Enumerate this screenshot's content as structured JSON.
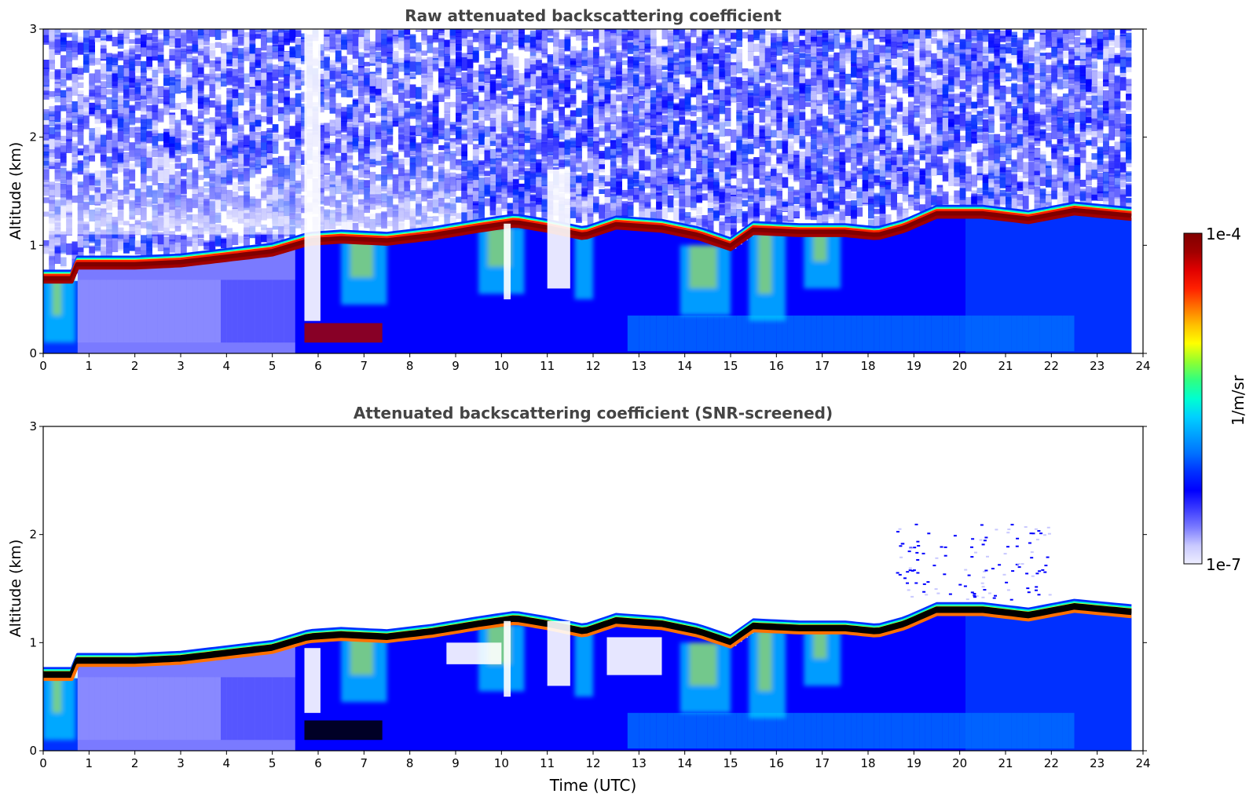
{
  "chart_data": [
    {
      "type": "heatmap",
      "title": "Raw attenuated backscattering coefficient",
      "xlabel": "",
      "ylabel": "Altitude (km)",
      "xlim": [
        0,
        24
      ],
      "ylim": [
        0,
        3
      ],
      "xticks": [
        "0",
        "1",
        "2",
        "3",
        "4",
        "5",
        "6",
        "7",
        "8",
        "9",
        "10",
        "11",
        "12",
        "13",
        "14",
        "15",
        "16",
        "17",
        "18",
        "19",
        "20",
        "21",
        "22",
        "23",
        "24"
      ],
      "yticks": [
        "0",
        "1",
        "2",
        "3"
      ],
      "data_end_hour": 23.75,
      "layer_top_km": [
        [
          0,
          0.75
        ],
        [
          0.65,
          0.75
        ],
        [
          0.7,
          0.88
        ],
        [
          2,
          0.88
        ],
        [
          3,
          0.9
        ],
        [
          4,
          0.95
        ],
        [
          5,
          1.0
        ],
        [
          5.8,
          1.1
        ],
        [
          6.5,
          1.12
        ],
        [
          7.5,
          1.1
        ],
        [
          8.5,
          1.15
        ],
        [
          9.5,
          1.22
        ],
        [
          10.3,
          1.27
        ],
        [
          11,
          1.22
        ],
        [
          11.8,
          1.15
        ],
        [
          12.5,
          1.25
        ],
        [
          13.5,
          1.22
        ],
        [
          14.3,
          1.15
        ],
        [
          15,
          1.05
        ],
        [
          15.5,
          1.2
        ],
        [
          16.5,
          1.18
        ],
        [
          17.5,
          1.18
        ],
        [
          18.2,
          1.15
        ],
        [
          18.8,
          1.22
        ],
        [
          19.5,
          1.35
        ],
        [
          20.5,
          1.35
        ],
        [
          21.5,
          1.3
        ],
        [
          22.5,
          1.38
        ],
        [
          23.75,
          1.33
        ]
      ],
      "colorbar": {
        "min": "1e-7",
        "max": "1e-4",
        "units": "1/m/sr"
      }
    },
    {
      "type": "heatmap",
      "title": "Attenuated backscattering coefficient (SNR-screened)",
      "xlabel": "Time (UTC)",
      "ylabel": "Altitude (km)",
      "xlim": [
        0,
        24
      ],
      "ylim": [
        0,
        3
      ],
      "xticks": [
        "0",
        "1",
        "2",
        "3",
        "4",
        "5",
        "6",
        "7",
        "8",
        "9",
        "10",
        "11",
        "12",
        "13",
        "14",
        "15",
        "16",
        "17",
        "18",
        "19",
        "20",
        "21",
        "22",
        "23",
        "24"
      ],
      "yticks": [
        "0",
        "1",
        "2",
        "3"
      ],
      "data_end_hour": 23.75,
      "colorbar": {
        "min": "1e-7",
        "max": "1e-4",
        "units": "1/m/sr"
      }
    }
  ],
  "colormap": [
    "#eeeeff",
    "#c8c8ff",
    "#7a7aff",
    "#3a3aff",
    "#0000ff",
    "#0030ff",
    "#0070ff",
    "#00a0ff",
    "#00d0ff",
    "#00ffd0",
    "#30ff80",
    "#90ff30",
    "#ffff00",
    "#ffc000",
    "#ff7000",
    "#ff2000",
    "#e00000",
    "#a00000",
    "#800000"
  ],
  "colorbar_ticks": {
    "top": "1e-4",
    "bottom": "1e-7"
  },
  "colorbar_label": "1/m/sr"
}
